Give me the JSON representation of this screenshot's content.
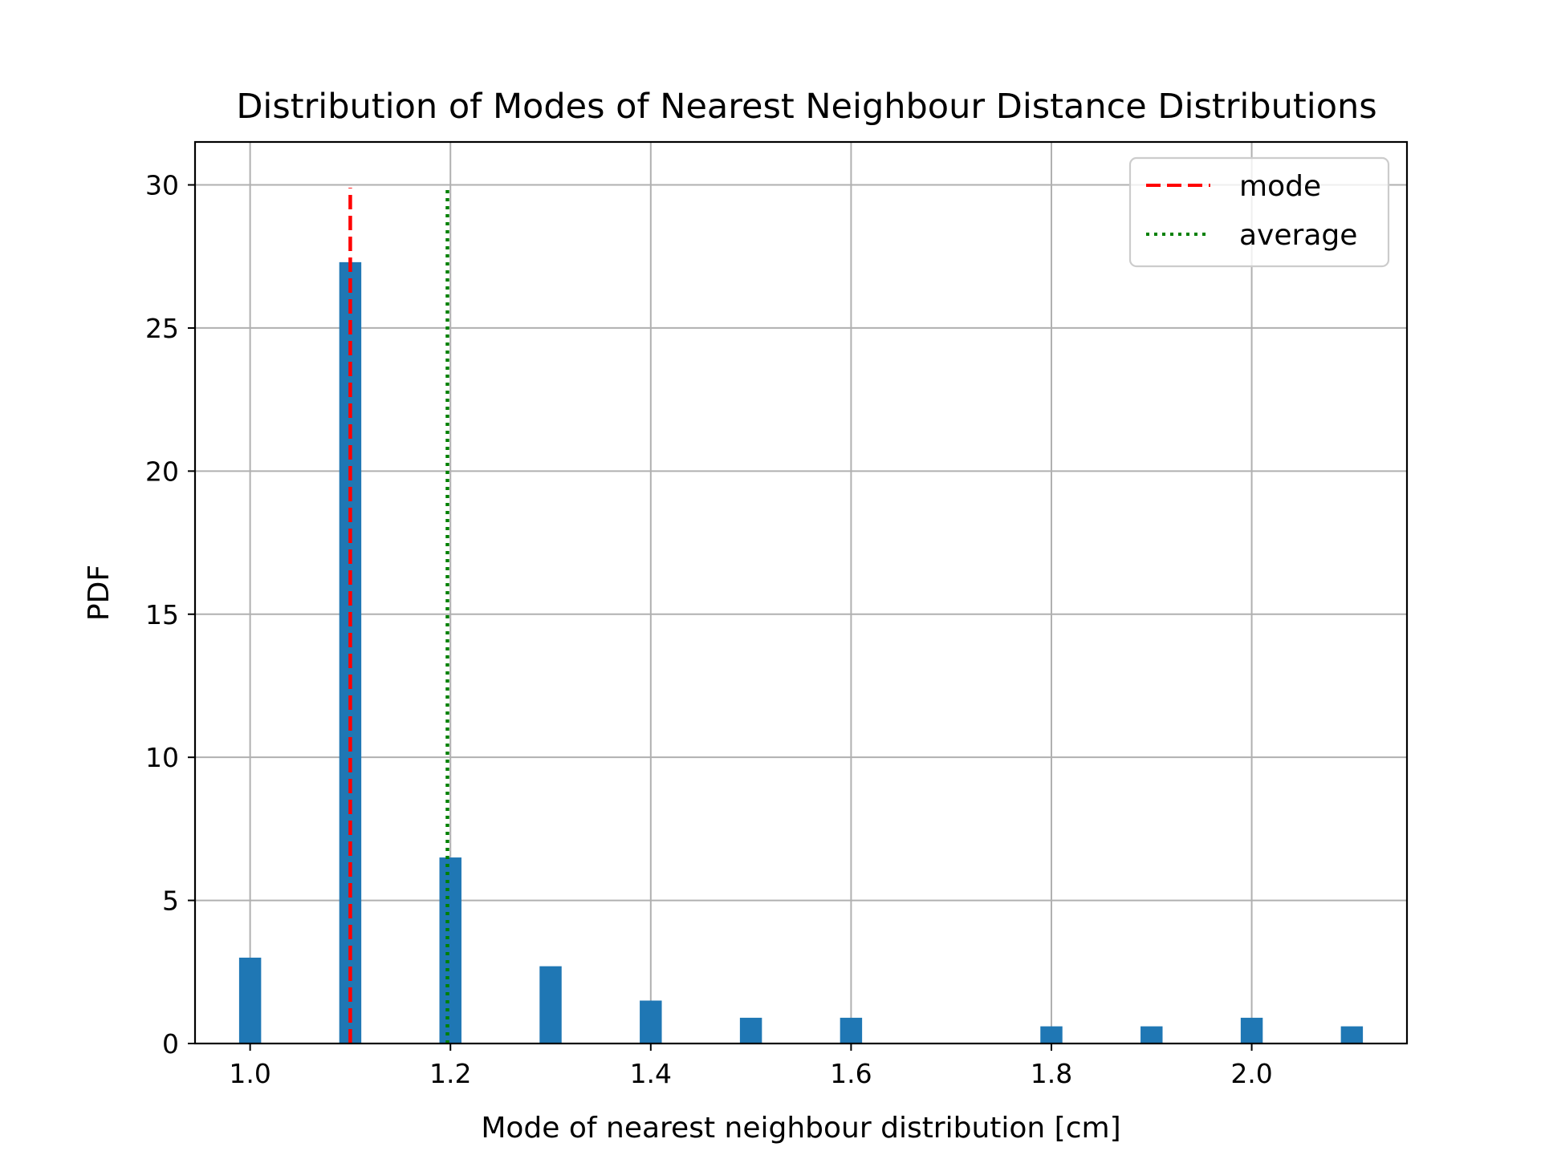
{
  "chart_data": {
    "type": "bar",
    "title": "Distribution of Modes of Nearest Neighbour Distance Distributions",
    "xlabel": "Mode of nearest neighbour distribution [cm]",
    "ylabel": "PDF",
    "xlim": [
      0.945,
      2.155
    ],
    "ylim": [
      0,
      31.5
    ],
    "xticks": [
      1.0,
      1.2,
      1.4,
      1.6,
      1.8,
      2.0
    ],
    "xtick_labels": [
      "1.0",
      "1.2",
      "1.4",
      "1.6",
      "1.8",
      "2.0"
    ],
    "yticks": [
      0,
      5,
      10,
      15,
      20,
      25,
      30
    ],
    "ytick_labels": [
      "0",
      "5",
      "10",
      "15",
      "20",
      "25",
      "30"
    ],
    "grid": true,
    "bar_width": 0.022,
    "bar_color": "#1f77b4",
    "bars": [
      {
        "x": 1.0,
        "value": 3.0
      },
      {
        "x": 1.1,
        "value": 27.3
      },
      {
        "x": 1.2,
        "value": 6.5
      },
      {
        "x": 1.3,
        "value": 2.7
      },
      {
        "x": 1.4,
        "value": 1.5
      },
      {
        "x": 1.5,
        "value": 0.9
      },
      {
        "x": 1.6,
        "value": 0.9
      },
      {
        "x": 1.8,
        "value": 0.6
      },
      {
        "x": 1.9,
        "value": 0.6
      },
      {
        "x": 2.0,
        "value": 0.9
      },
      {
        "x": 2.1,
        "value": 0.6
      }
    ],
    "vlines": [
      {
        "name": "mode",
        "x": 1.1,
        "ymax": 29.9,
        "color": "#ff0000",
        "style": "dashed"
      },
      {
        "name": "average",
        "x": 1.197,
        "ymax": 29.9,
        "color": "#008000",
        "style": "dotted"
      }
    ],
    "legend_position": "top-right"
  }
}
